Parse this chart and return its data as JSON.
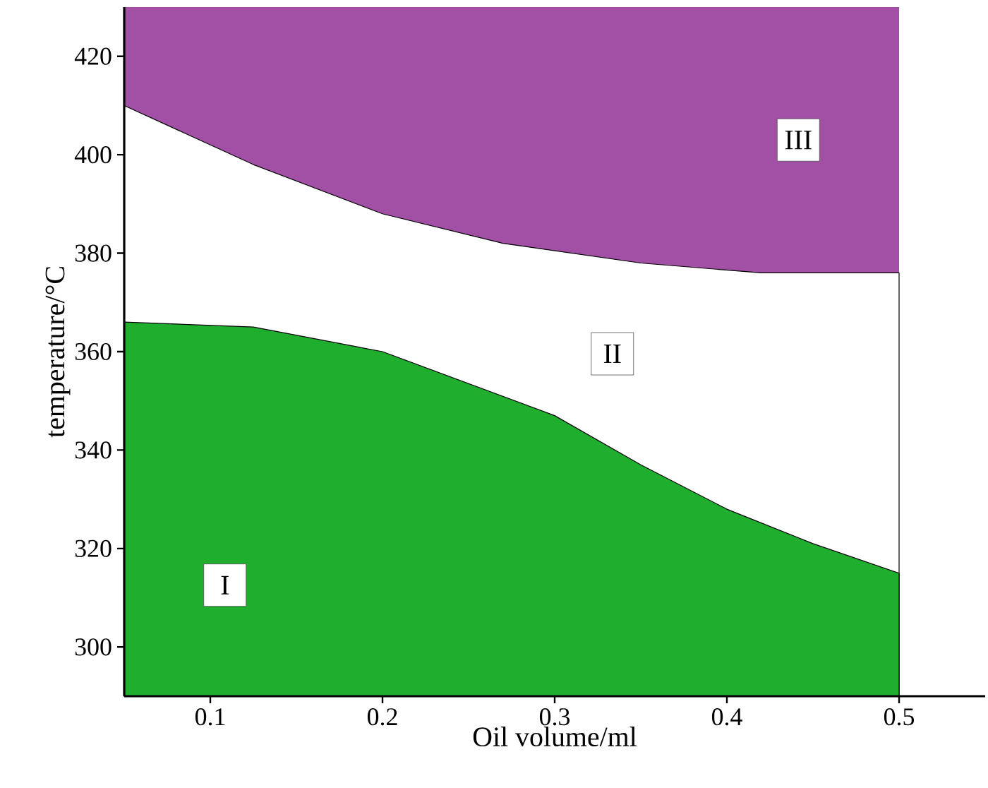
{
  "chart_data": {
    "type": "area",
    "xlabel": "Oil volume/ml",
    "ylabel": "temperature/°C",
    "xlim": [
      0.05,
      0.55
    ],
    "xticks": [
      0.1,
      0.2,
      0.3,
      0.4,
      0.5
    ],
    "ylim": [
      290,
      430
    ],
    "yticks": [
      300,
      320,
      340,
      360,
      380,
      400,
      420
    ],
    "series": [
      {
        "color": "#1fae2e",
        "x": [
          0.05,
          0.125,
          0.2,
          0.3,
          0.35,
          0.4,
          0.45,
          0.5
        ],
        "values": [
          366,
          365,
          360,
          347,
          337,
          328,
          321,
          315
        ]
      },
      {
        "color": "#ffffff",
        "x": [
          0.05,
          0.125,
          0.2,
          0.27,
          0.35,
          0.42,
          0.5
        ],
        "values": [
          410,
          398,
          388,
          382,
          378,
          376,
          376
        ]
      }
    ],
    "bands": [
      {
        "axis": "x",
        "from": 0.05,
        "to": 0.5,
        "color": "#a24fa6"
      }
    ],
    "annotations": [
      "I",
      "II",
      "III"
    ]
  }
}
